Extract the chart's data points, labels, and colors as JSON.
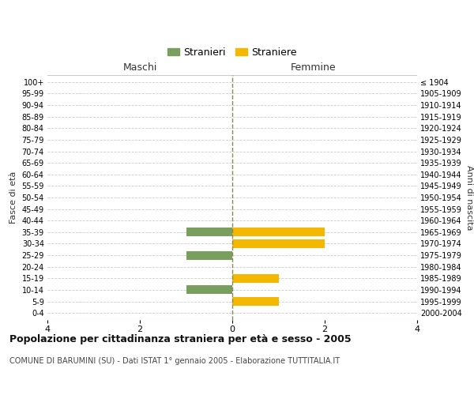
{
  "age_groups": [
    "0-4",
    "5-9",
    "10-14",
    "15-19",
    "20-24",
    "25-29",
    "30-34",
    "35-39",
    "40-44",
    "45-49",
    "50-54",
    "55-59",
    "60-64",
    "65-69",
    "70-74",
    "75-79",
    "80-84",
    "85-89",
    "90-94",
    "95-99",
    "100+"
  ],
  "birth_years": [
    "2000-2004",
    "1995-1999",
    "1990-1994",
    "1985-1989",
    "1980-1984",
    "1975-1979",
    "1970-1974",
    "1965-1969",
    "1960-1964",
    "1955-1959",
    "1950-1954",
    "1945-1949",
    "1940-1944",
    "1935-1939",
    "1930-1934",
    "1925-1929",
    "1920-1924",
    "1915-1919",
    "1910-1914",
    "1905-1909",
    "≤ 1904"
  ],
  "males": [
    0,
    0,
    -1,
    0,
    0,
    -1,
    0,
    -1,
    0,
    0,
    0,
    0,
    0,
    0,
    0,
    0,
    0,
    0,
    0,
    0,
    0
  ],
  "females": [
    0,
    1,
    0,
    1,
    0,
    0,
    2,
    2,
    0,
    0,
    0,
    0,
    0,
    0,
    0,
    0,
    0,
    0,
    0,
    0,
    0
  ],
  "male_color": "#7a9e5e",
  "female_color": "#f5b800",
  "male_label": "Stranieri",
  "female_label": "Straniere",
  "title": "Popolazione per cittadinanza straniera per età e sesso - 2005",
  "subtitle": "COMUNE DI BARUMINI (SU) - Dati ISTAT 1° gennaio 2005 - Elaborazione TUTTITALIA.IT",
  "xlabel_left": "Maschi",
  "xlabel_right": "Femmine",
  "ylabel_left": "Fasce di età",
  "ylabel_right": "Anni di nascita",
  "xlim": [
    -4,
    4
  ],
  "xticks": [
    -4,
    -2,
    0,
    2,
    4
  ],
  "xticklabels": [
    "4",
    "2",
    "0",
    "2",
    "4"
  ],
  "background_color": "#ffffff",
  "grid_color": "#cccccc",
  "bar_height": 0.75
}
